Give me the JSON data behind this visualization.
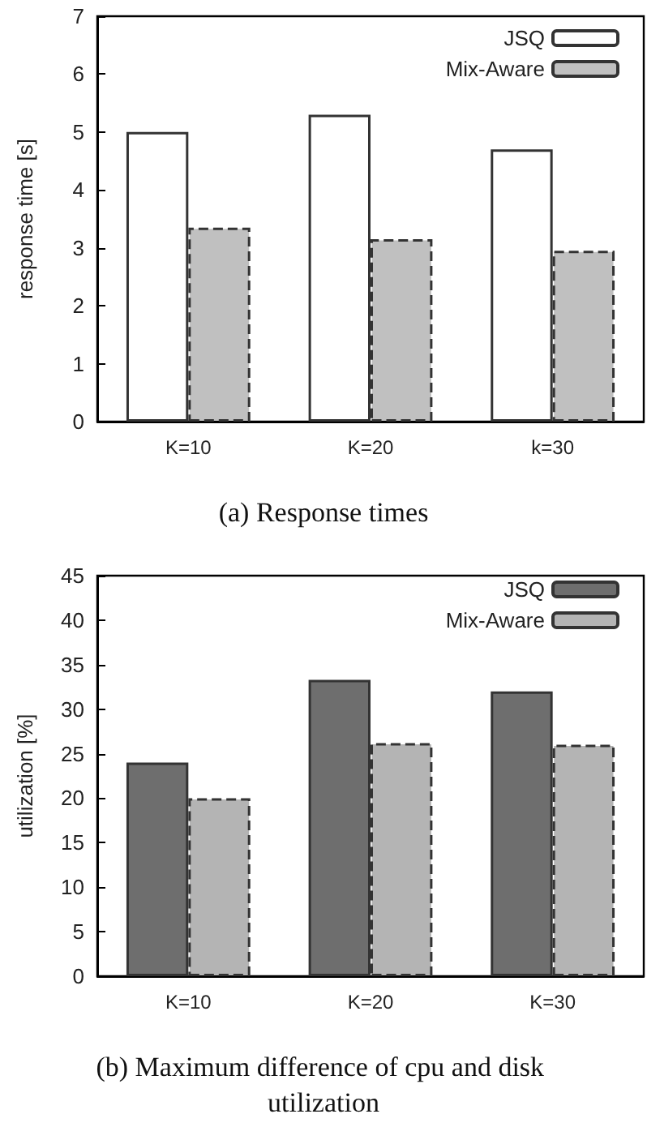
{
  "chart_data": [
    {
      "type": "bar",
      "ylabel": "response time [s]",
      "categories": [
        "K=10",
        "K=20",
        "k=30"
      ],
      "series": [
        {
          "name": "JSQ",
          "color": "#ffffff",
          "line_style": "solid",
          "values": [
            5.0,
            5.3,
            4.7
          ]
        },
        {
          "name": "Mix-Aware",
          "color": "#c0c0c0",
          "line_style": "dashed",
          "values": [
            3.35,
            3.15,
            2.95
          ]
        }
      ],
      "ylim": [
        0,
        7
      ],
      "yticks": [
        0,
        1,
        2,
        3,
        4,
        5,
        6,
        7
      ],
      "grid": false,
      "legend": "top right",
      "annotations": [
        "(a) Response times"
      ]
    },
    {
      "type": "bar",
      "ylabel": "utilization [%]",
      "categories": [
        "K=10",
        "K=20",
        "K=30"
      ],
      "series": [
        {
          "name": "JSQ",
          "color": "#6e6e6e",
          "line_style": "solid",
          "values": [
            24,
            33.3,
            32
          ]
        },
        {
          "name": "Mix-Aware",
          "color": "#b4b4b4",
          "line_style": "dashed",
          "values": [
            20,
            26.2,
            26
          ]
        }
      ],
      "ylim": [
        0,
        45
      ],
      "yticks": [
        0,
        5,
        10,
        15,
        20,
        25,
        30,
        35,
        40,
        45
      ],
      "grid": false,
      "legend": "top right",
      "annotations": [
        "(b) Maximum difference of cpu and disk utilization"
      ]
    }
  ]
}
